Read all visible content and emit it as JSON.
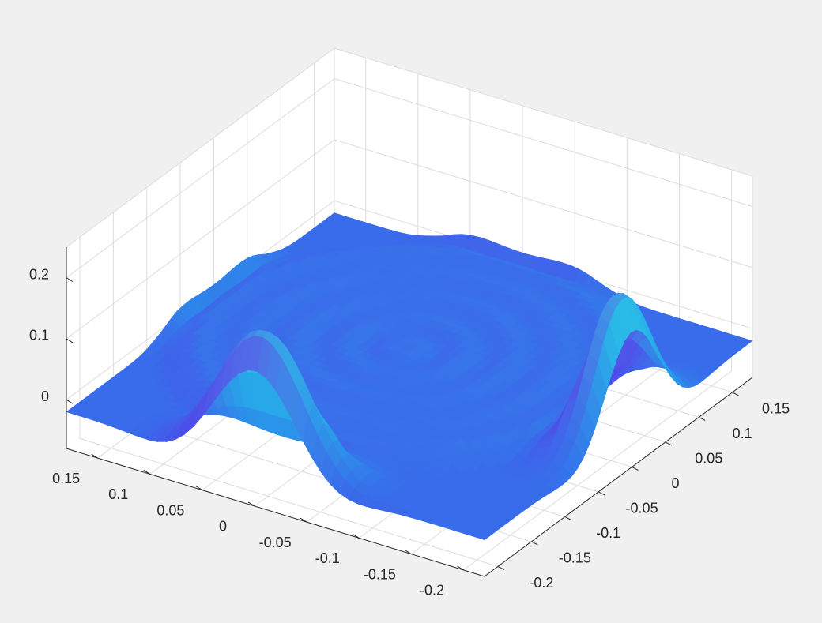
{
  "chart_data": {
    "type": "surface",
    "title": "",
    "xlabel": "",
    "ylabel": "",
    "zlabel": "",
    "grid": true,
    "box": false,
    "x_ticks": [
      "0.15",
      "0.1",
      "0.05",
      "0",
      "-0.05",
      "-0.1",
      "-0.15",
      "-0.2"
    ],
    "y_ticks": [
      "-0.2",
      "-0.15",
      "-0.1",
      "-0.05",
      "0",
      "0.05",
      "0.1",
      "0.15"
    ],
    "z_ticks": [
      "0",
      "0.1",
      "0.2"
    ],
    "xlim": [
      -0.22,
      0.18
    ],
    "ylim": [
      -0.22,
      0.18
    ],
    "zlim": [
      -0.08,
      0.25
    ],
    "description_features": {
      "ring_outer_radius": 0.17,
      "ring_height": 0.0,
      "corner_peak_height": 0.23,
      "corner_min_height": -0.08
    },
    "surface_color": "#3f6ff0",
    "edge_color_light": "#3fa0e8",
    "edge_color_dark": "#3a3ad8"
  }
}
